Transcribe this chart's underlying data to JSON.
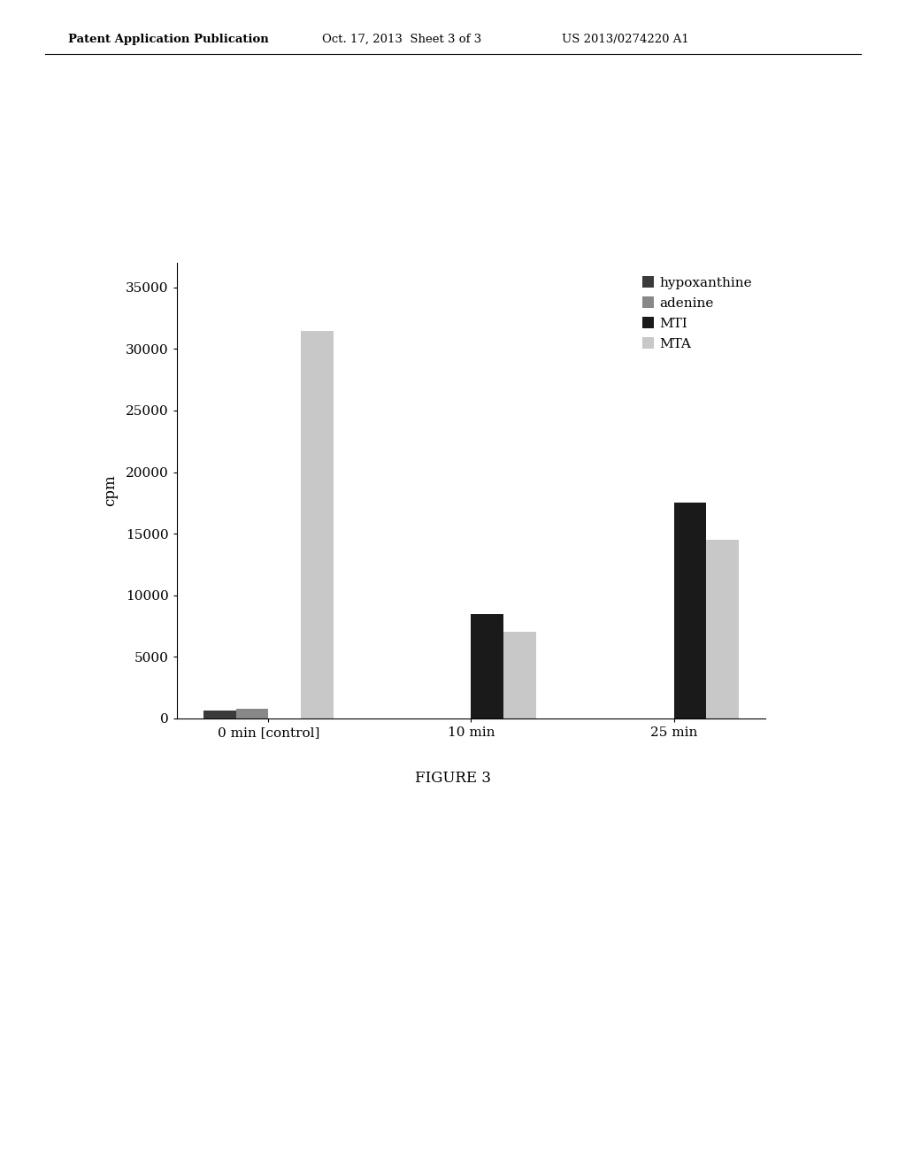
{
  "groups": [
    "0 min [control]",
    "10 min",
    "25 min"
  ],
  "series": [
    "hypoxanthine",
    "adenine",
    "MTI",
    "MTA"
  ],
  "values": [
    [
      600,
      800,
      0,
      31500
    ],
    [
      0,
      0,
      8500,
      7000
    ],
    [
      0,
      0,
      17500,
      14500
    ]
  ],
  "colors": [
    "#3a3a3a",
    "#888888",
    "#1a1a1a",
    "#c8c8c8"
  ],
  "ylabel": "cpm",
  "ylim": [
    0,
    37000
  ],
  "yticks": [
    0,
    5000,
    10000,
    15000,
    20000,
    25000,
    30000,
    35000
  ],
  "figure_caption": "FIGURE 3",
  "header_left": "Patent Application Publication",
  "header_center": "Oct. 17, 2013  Sheet 3 of 3",
  "header_right": "US 2013/0274220 A1",
  "bar_width": 0.16,
  "background_color": "#ffffff"
}
